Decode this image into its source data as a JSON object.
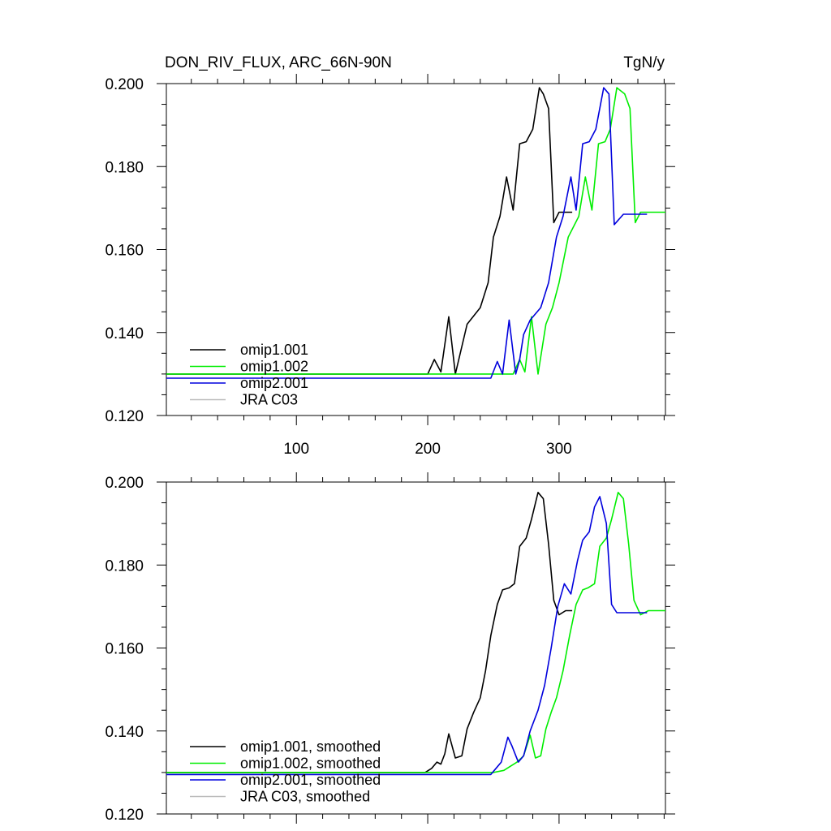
{
  "chart_data": [
    {
      "type": "line",
      "title": "DON_RIV_FLUX, ARC_66N-90N",
      "units": "TgN/y",
      "xlim": [
        1,
        381
      ],
      "ylim": [
        0.12,
        0.2
      ],
      "ytick_values": [
        0.12,
        0.14,
        0.16,
        0.18,
        0.2
      ],
      "ytick_labels": [
        "0.120",
        "0.140",
        "0.160",
        "0.180",
        "0.200"
      ],
      "xtick_values": [
        100,
        200,
        300
      ],
      "xtick_labels": [
        "100",
        "200",
        "300"
      ],
      "legend_location": "lower-left",
      "series": [
        {
          "name": "omip1.001",
          "color": "#000000",
          "x": [
            1,
            200,
            205,
            210,
            216,
            221,
            230,
            240,
            246,
            250,
            255,
            260,
            265,
            270,
            275,
            280,
            285,
            288,
            292,
            296,
            300,
            310
          ],
          "y": [
            0.13,
            0.13,
            0.1335,
            0.1305,
            0.1438,
            0.13,
            0.142,
            0.146,
            0.152,
            0.163,
            0.168,
            0.1775,
            0.1695,
            0.1855,
            0.186,
            0.189,
            0.199,
            0.1975,
            0.194,
            0.1665,
            0.169,
            0.169
          ]
        },
        {
          "name": "omip1.002",
          "color": "#00ee00",
          "x": [
            1,
            250,
            255,
            260,
            265,
            270,
            274,
            279,
            284,
            290,
            295,
            300,
            307,
            315,
            320,
            325,
            330,
            335,
            339,
            344,
            350,
            354,
            358,
            362,
            368,
            381
          ],
          "y": [
            0.13,
            0.13,
            0.13,
            0.13,
            0.13,
            0.1335,
            0.1305,
            0.1438,
            0.13,
            0.142,
            0.146,
            0.152,
            0.163,
            0.168,
            0.1775,
            0.1695,
            0.1855,
            0.186,
            0.189,
            0.199,
            0.1975,
            0.194,
            0.1665,
            0.169,
            0.169,
            0.169
          ]
        },
        {
          "name": "omip2.001",
          "color": "#0000dd",
          "x": [
            1,
            248,
            253,
            257,
            262,
            267,
            270,
            273,
            278,
            286,
            292,
            298,
            303,
            309,
            313,
            318,
            323,
            328,
            334,
            338,
            342,
            349,
            356,
            367
          ],
          "y": [
            0.129,
            0.129,
            0.133,
            0.13,
            0.143,
            0.13,
            0.1335,
            0.1395,
            0.143,
            0.146,
            0.152,
            0.163,
            0.168,
            0.1775,
            0.1695,
            0.1855,
            0.186,
            0.189,
            0.199,
            0.1975,
            0.166,
            0.1685,
            0.1685,
            0.1685
          ]
        },
        {
          "name": "JRA C03",
          "color": "#bbbbbb",
          "x": [],
          "y": []
        }
      ]
    },
    {
      "type": "line",
      "title": "",
      "units": "",
      "xlim": [
        1,
        381
      ],
      "ylim": [
        0.12,
        0.2
      ],
      "ytick_values": [
        0.12,
        0.14,
        0.16,
        0.18,
        0.2
      ],
      "ytick_labels": [
        "0.120",
        "0.140",
        "0.160",
        "0.180",
        "0.200"
      ],
      "xtick_values": [
        100,
        200,
        300
      ],
      "xtick_labels": [],
      "legend_location": "lower-left",
      "series": [
        {
          "name": "omip1.001, smoothed",
          "color": "#000000",
          "x": [
            1,
            198,
            203,
            207,
            210,
            213,
            216,
            221,
            226,
            230,
            235,
            240,
            244,
            248,
            253,
            257,
            262,
            266,
            270,
            275,
            279,
            284,
            288,
            292,
            296,
            300,
            305,
            310
          ],
          "y": [
            0.13,
            0.13,
            0.131,
            0.1325,
            0.132,
            0.1345,
            0.1393,
            0.1335,
            0.134,
            0.1405,
            0.1445,
            0.148,
            0.1545,
            0.163,
            0.1705,
            0.174,
            0.1745,
            0.1755,
            0.1845,
            0.1865,
            0.191,
            0.1975,
            0.196,
            0.185,
            0.1715,
            0.168,
            0.169,
            0.169
          ]
        },
        {
          "name": "omip1.002, smoothed",
          "color": "#00ee00",
          "x": [
            1,
            250,
            258,
            263,
            268,
            273,
            278,
            282,
            286,
            290,
            294,
            298,
            303,
            308,
            313,
            318,
            322,
            327,
            331,
            336,
            340,
            345,
            349,
            353,
            357,
            362,
            368,
            381
          ],
          "y": [
            0.13,
            0.13,
            0.1305,
            0.1315,
            0.1325,
            0.134,
            0.139,
            0.1335,
            0.134,
            0.1405,
            0.1445,
            0.148,
            0.1545,
            0.163,
            0.1705,
            0.174,
            0.1745,
            0.1755,
            0.1845,
            0.1865,
            0.191,
            0.1975,
            0.196,
            0.185,
            0.1715,
            0.168,
            0.169,
            0.169
          ]
        },
        {
          "name": "omip2.001, smoothed",
          "color": "#0000dd",
          "x": [
            1,
            248,
            252,
            256,
            261,
            264,
            269,
            273,
            278,
            284,
            289,
            294,
            299,
            304,
            309,
            314,
            318,
            323,
            327,
            331,
            336,
            340,
            344,
            350,
            356,
            367
          ],
          "y": [
            0.1295,
            0.1295,
            0.131,
            0.1325,
            0.1385,
            0.1365,
            0.1325,
            0.134,
            0.14,
            0.145,
            0.151,
            0.16,
            0.17,
            0.1755,
            0.173,
            0.181,
            0.186,
            0.188,
            0.194,
            0.1965,
            0.19,
            0.1705,
            0.1685,
            0.1685,
            0.1685,
            0.1685
          ]
        },
        {
          "name": "JRA C03, smoothed",
          "color": "#bbbbbb",
          "x": [],
          "y": []
        }
      ]
    }
  ]
}
